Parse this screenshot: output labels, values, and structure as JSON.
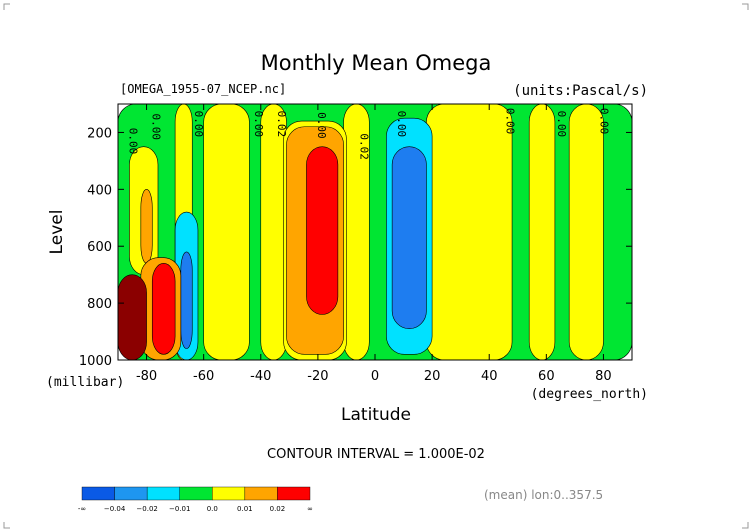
{
  "chart_data": {
    "type": "heatmap",
    "title": "Monthly Mean Omega",
    "file_label": "[OMEGA_1955-07_NCEP.nc]",
    "units_label": "(units:Pascal/s)",
    "xlabel": "Latitude",
    "x_units": "(degrees_north)",
    "ylabel": "Level",
    "y_units": "(millibar)",
    "x_range": [
      -90,
      90
    ],
    "y_range": [
      100,
      1000
    ],
    "x_ticks": [
      "-80",
      "-60",
      "-40",
      "-20",
      "0",
      "20",
      "40",
      "60",
      "80"
    ],
    "x_tick_values": [
      -80,
      -60,
      -40,
      -20,
      0,
      20,
      40,
      60,
      80
    ],
    "y_ticks": [
      "200",
      "400",
      "600",
      "800",
      "1000"
    ],
    "y_tick_values": [
      200,
      400,
      600,
      800,
      1000
    ],
    "contour_interval_text": "CONTOUR INTERVAL = 1.000E-02",
    "footer_text": "(mean) lon:0..357.5",
    "colorbar": {
      "boundaries": [
        "-∞",
        "−0.04",
        "−0.02",
        "−0.01",
        "0.0",
        "0.01",
        "0.02",
        "∞"
      ],
      "colors": [
        "#0a5ae6",
        "#1e96f0",
        "#00e1ff",
        "#00e632",
        "#ffff00",
        "#ffa500",
        "#ff0000"
      ]
    },
    "contour_labels": [
      "0.00",
      "0.00",
      "0.00",
      "0.00",
      "0.02",
      "0.00",
      "0.02",
      "0.00",
      "0.00",
      "0.00",
      "0.00"
    ],
    "regions": [
      {
        "level": "green",
        "x": [
          -90,
          90
        ],
        "y": [
          100,
          1000
        ]
      },
      {
        "level": "yellow",
        "x": [
          -70,
          -64
        ],
        "y": [
          100,
          1000
        ]
      },
      {
        "level": "yellow",
        "x": [
          -60,
          -44
        ],
        "y": [
          100,
          1000
        ]
      },
      {
        "level": "yellow",
        "x": [
          -40,
          -31
        ],
        "y": [
          100,
          1000
        ]
      },
      {
        "level": "yellow",
        "x": [
          -11,
          -2
        ],
        "y": [
          100,
          1000
        ]
      },
      {
        "level": "yellow",
        "x": [
          18,
          48
        ],
        "y": [
          100,
          1000
        ]
      },
      {
        "level": "yellow",
        "x": [
          54,
          63
        ],
        "y": [
          100,
          1000
        ]
      },
      {
        "level": "yellow",
        "x": [
          68,
          80
        ],
        "y": [
          100,
          1000
        ]
      },
      {
        "level": "yellow",
        "x": [
          -32,
          -10
        ],
        "y": [
          160,
          1000
        ]
      },
      {
        "level": "orange",
        "x": [
          -31,
          -11
        ],
        "y": [
          180,
          980
        ]
      },
      {
        "level": "red",
        "x": [
          -24,
          -13
        ],
        "y": [
          250,
          840
        ]
      },
      {
        "level": "cyan",
        "x": [
          4,
          20
        ],
        "y": [
          150,
          980
        ]
      },
      {
        "level": "blue",
        "x": [
          6,
          18
        ],
        "y": [
          250,
          890
        ]
      },
      {
        "level": "yellow",
        "x": [
          -86,
          -76
        ],
        "y": [
          250,
          700
        ]
      },
      {
        "level": "orange",
        "x": [
          -82,
          -78
        ],
        "y": [
          400,
          660
        ]
      },
      {
        "level": "cyan",
        "x": [
          -70,
          -62
        ],
        "y": [
          480,
          1000
        ]
      },
      {
        "level": "blue",
        "x": [
          -68,
          -64
        ],
        "y": [
          620,
          960
        ]
      },
      {
        "level": "orange",
        "x": [
          -82,
          -68
        ],
        "y": [
          640,
          1000
        ]
      },
      {
        "level": "red",
        "x": [
          -78,
          -70
        ],
        "y": [
          660,
          980
        ]
      },
      {
        "level": "maroon",
        "x": [
          -90,
          -80
        ],
        "y": [
          700,
          1000
        ]
      }
    ]
  }
}
